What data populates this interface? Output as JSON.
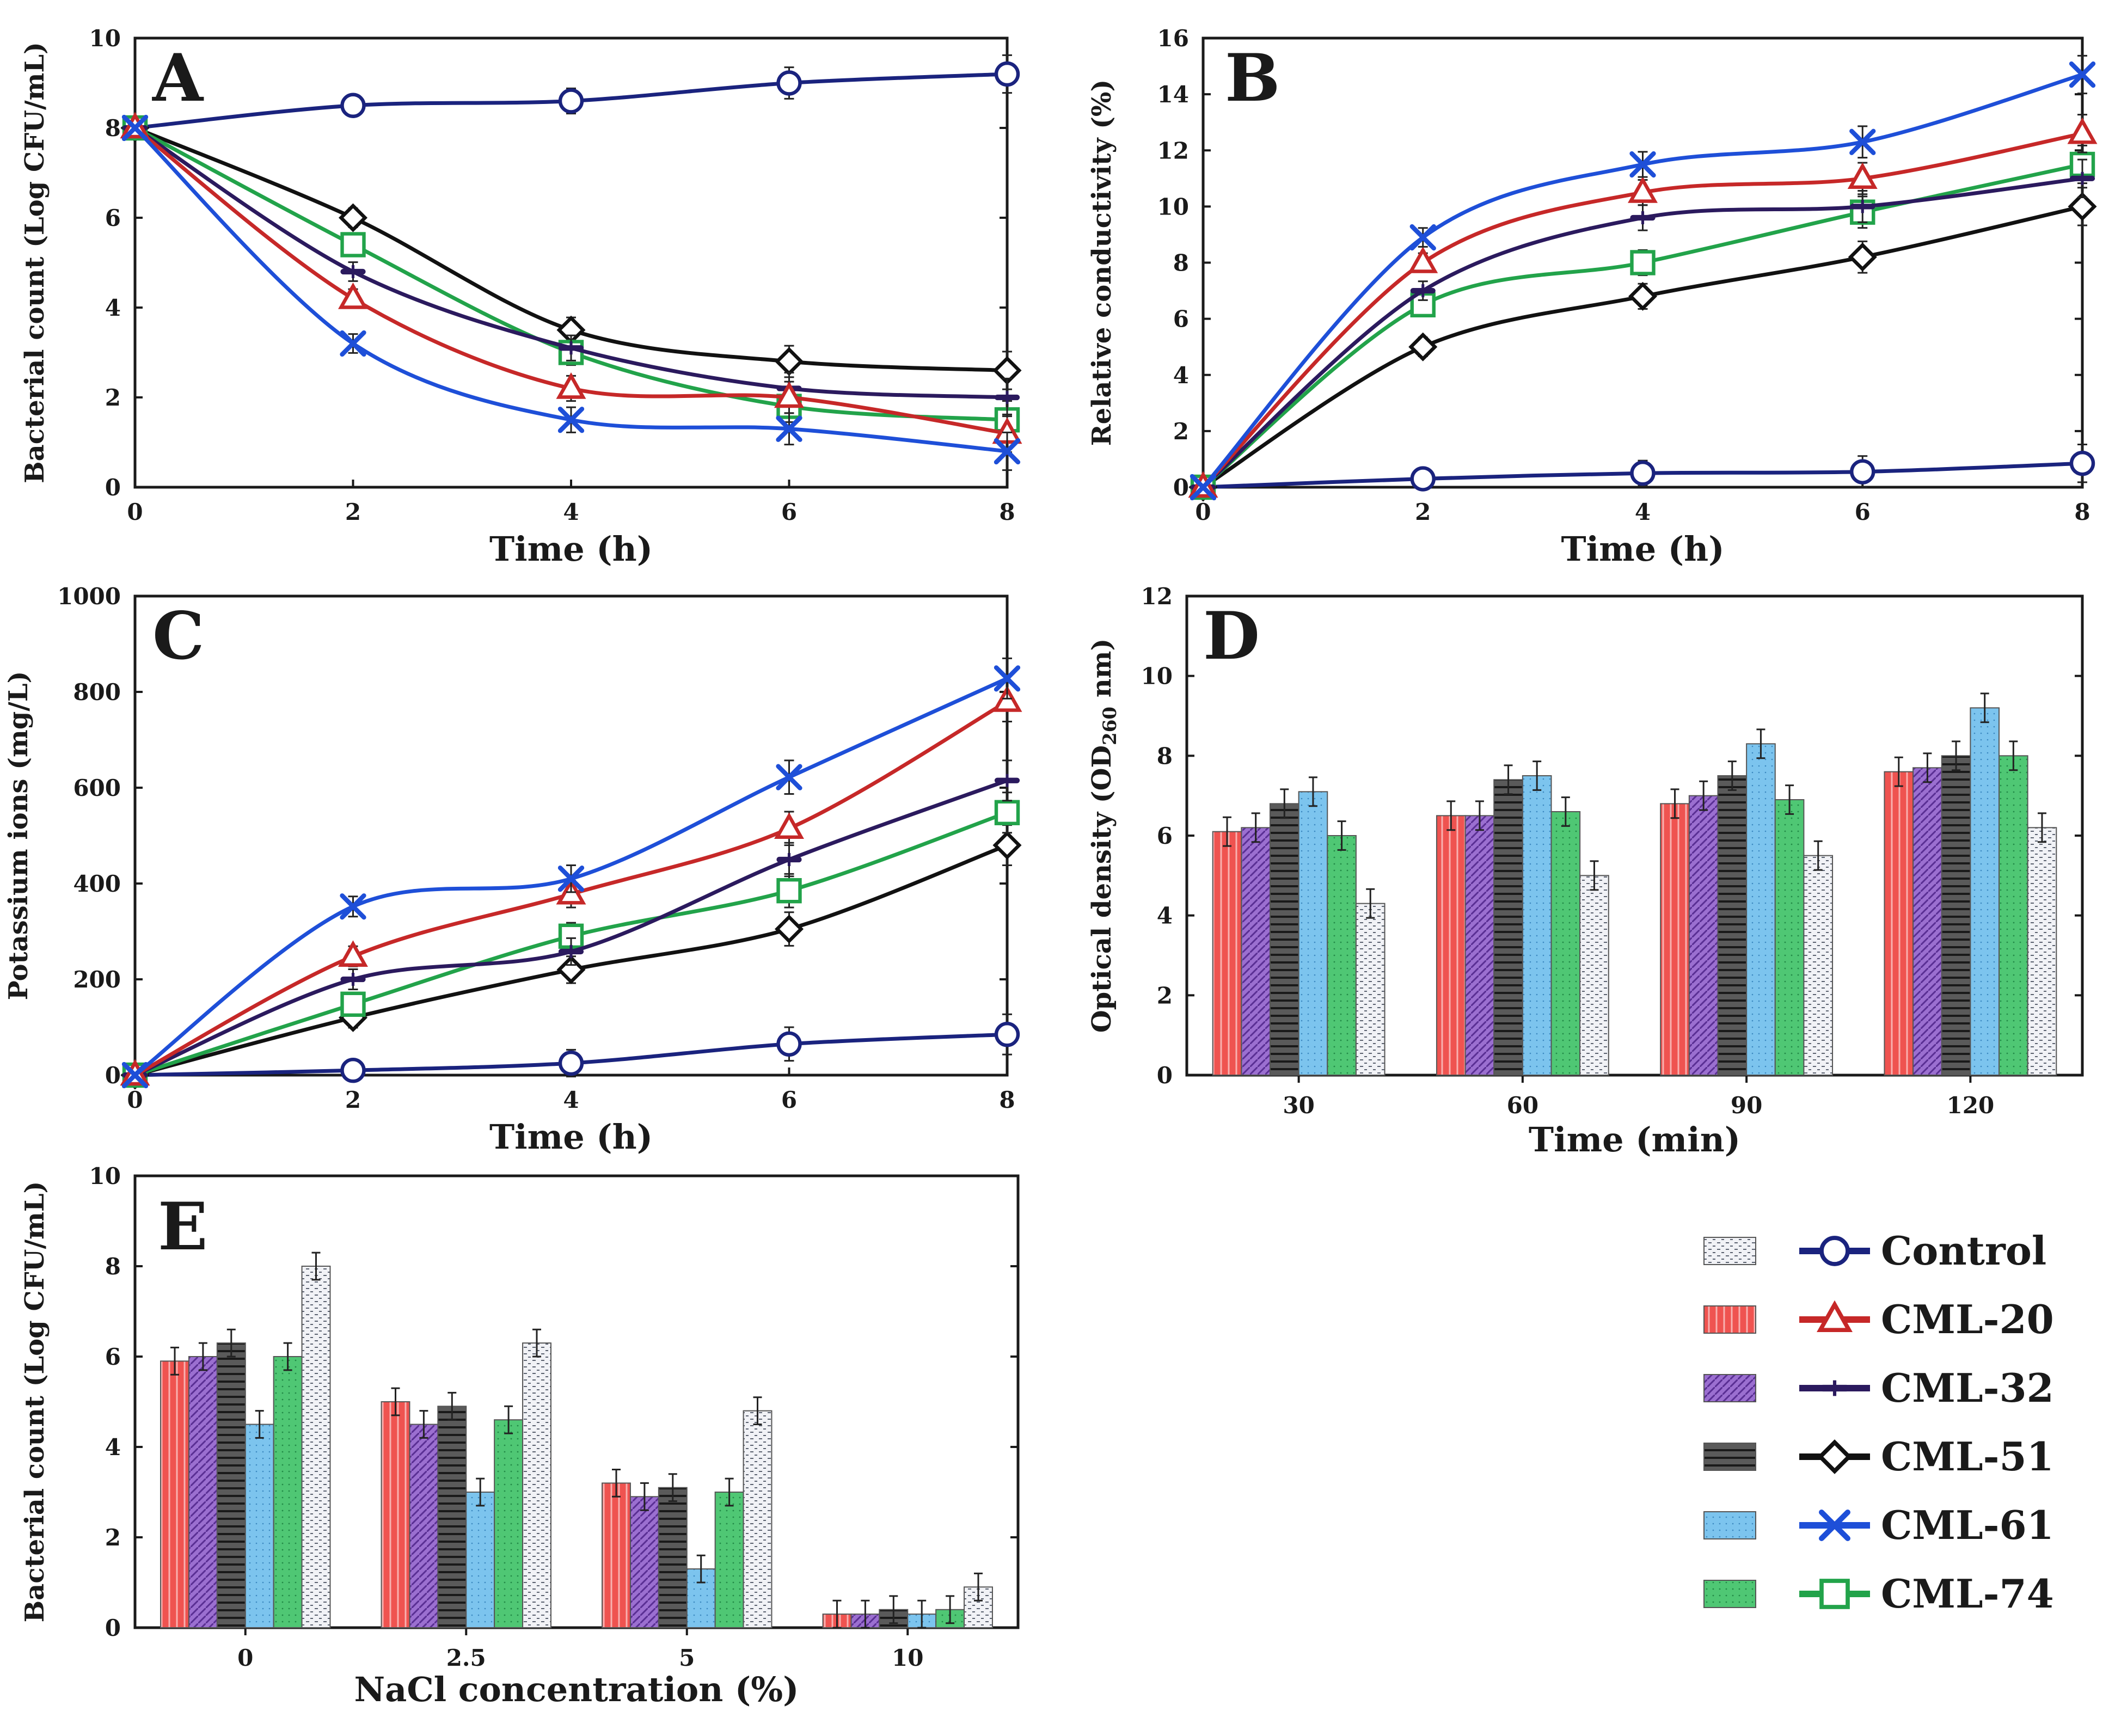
{
  "colors": {
    "Control": "#1a237e",
    "CML-20": "#c62828",
    "CML-32": "#2b1a5e",
    "CML-51": "#111111",
    "CML-61": "#1e4fd8",
    "CML-74": "#22a34a"
  },
  "bar_colors": {
    "Control": "#e8eaf0",
    "CML-20": "#ef5350",
    "CML-32": "#9b6fd0",
    "CML-51": "#555555",
    "CML-61": "#7cc4ee",
    "CML-74": "#4fc774"
  },
  "legend": {
    "entries": [
      "Control",
      "CML-20",
      "CML-32",
      "CML-51",
      "CML-61",
      "CML-74"
    ],
    "markers": [
      "circle",
      "triangle",
      "dash",
      "diamond",
      "x",
      "square"
    ]
  },
  "chart_data": [
    {
      "panel": "A",
      "type": "line",
      "xlabel": "Time (h)",
      "ylabel": "Bacterial count (Log CFU/mL)",
      "xlim": [
        0,
        8
      ],
      "ylim": [
        0,
        10
      ],
      "xticks": [
        0,
        2,
        4,
        6,
        8
      ],
      "yticks": [
        0,
        2,
        4,
        6,
        8,
        10
      ],
      "x": [
        0,
        2,
        4,
        6,
        8
      ],
      "series": [
        {
          "name": "Control",
          "values": [
            8.0,
            8.5,
            8.6,
            9.0,
            9.2
          ]
        },
        {
          "name": "CML-51",
          "values": [
            8.0,
            6.0,
            3.5,
            2.8,
            2.6
          ]
        },
        {
          "name": "CML-74",
          "values": [
            8.0,
            5.4,
            3.0,
            1.8,
            1.5
          ]
        },
        {
          "name": "CML-32",
          "values": [
            8.0,
            4.8,
            3.1,
            2.2,
            2.0
          ]
        },
        {
          "name": "CML-20",
          "values": [
            8.0,
            4.2,
            2.2,
            2.0,
            1.2
          ]
        },
        {
          "name": "CML-61",
          "values": [
            8.0,
            3.2,
            1.5,
            1.3,
            0.8
          ]
        }
      ]
    },
    {
      "panel": "B",
      "type": "line",
      "xlabel": "Time (h)",
      "ylabel": "Relative conductivity (%)",
      "xlim": [
        0,
        8
      ],
      "ylim": [
        0,
        16
      ],
      "xticks": [
        0,
        2,
        4,
        6,
        8
      ],
      "yticks": [
        0,
        2,
        4,
        6,
        8,
        10,
        12,
        14,
        16
      ],
      "x": [
        0,
        2,
        4,
        6,
        8
      ],
      "series": [
        {
          "name": "Control",
          "values": [
            0.0,
            0.3,
            0.5,
            0.55,
            0.85
          ]
        },
        {
          "name": "CML-51",
          "values": [
            0.0,
            5.0,
            6.8,
            8.2,
            10.0
          ]
        },
        {
          "name": "CML-74",
          "values": [
            0.0,
            6.5,
            8.0,
            9.8,
            11.5
          ]
        },
        {
          "name": "CML-32",
          "values": [
            0.0,
            7.0,
            9.6,
            10.0,
            11.0
          ]
        },
        {
          "name": "CML-20",
          "values": [
            0.0,
            8.0,
            10.5,
            11.0,
            12.6
          ]
        },
        {
          "name": "CML-61",
          "values": [
            0.0,
            8.9,
            11.5,
            12.3,
            14.7
          ]
        }
      ]
    },
    {
      "panel": "C",
      "type": "line",
      "xlabel": "Time (h)",
      "ylabel": "Potassium ions (mg/L)",
      "xlim": [
        0,
        8
      ],
      "ylim": [
        0,
        1000
      ],
      "xticks": [
        0,
        2,
        4,
        6,
        8
      ],
      "yticks": [
        0,
        200,
        400,
        600,
        800,
        1000
      ],
      "x": [
        0,
        2,
        4,
        6,
        8
      ],
      "series": [
        {
          "name": "Control",
          "values": [
            0,
            10,
            25,
            65,
            85
          ]
        },
        {
          "name": "CML-51",
          "values": [
            0,
            120,
            220,
            305,
            480
          ]
        },
        {
          "name": "CML-74",
          "values": [
            0,
            148,
            290,
            385,
            548
          ]
        },
        {
          "name": "CML-32",
          "values": [
            0,
            200,
            258,
            450,
            615
          ]
        },
        {
          "name": "CML-20",
          "values": [
            0,
            248,
            378,
            515,
            780
          ]
        },
        {
          "name": "CML-61",
          "values": [
            0,
            352,
            410,
            622,
            828
          ]
        }
      ]
    },
    {
      "panel": "D",
      "type": "bar",
      "xlabel": "Time (min)",
      "ylabel": "Optical density (OD",
      "ylabel_sub": "260",
      "ylabel_tail": " nm)",
      "ylim": [
        0,
        12
      ],
      "yticks": [
        0,
        2,
        4,
        6,
        8,
        10,
        12
      ],
      "categories": [
        "30",
        "60",
        "90",
        "120"
      ],
      "series": [
        {
          "name": "CML-20",
          "values": [
            6.1,
            6.5,
            6.8,
            7.6
          ]
        },
        {
          "name": "CML-32",
          "values": [
            6.2,
            6.5,
            7.0,
            7.7
          ]
        },
        {
          "name": "CML-51",
          "values": [
            6.8,
            7.4,
            7.5,
            8.0
          ]
        },
        {
          "name": "CML-61",
          "values": [
            7.1,
            7.5,
            8.3,
            9.2
          ]
        },
        {
          "name": "CML-74",
          "values": [
            6.0,
            6.6,
            6.9,
            8.0
          ]
        },
        {
          "name": "Control",
          "values": [
            4.3,
            5.0,
            5.5,
            6.2
          ]
        }
      ]
    },
    {
      "panel": "E",
      "type": "bar",
      "xlabel": "NaCl concentration (%)",
      "ylabel": "Bacterial count (Log CFU/mL)",
      "ylim": [
        0,
        10
      ],
      "yticks": [
        0,
        2,
        4,
        6,
        8,
        10
      ],
      "categories": [
        "0",
        "2.5",
        "5",
        "10"
      ],
      "series": [
        {
          "name": "CML-20",
          "values": [
            5.9,
            5.0,
            3.2,
            0.3
          ]
        },
        {
          "name": "CML-32",
          "values": [
            6.0,
            4.5,
            2.9,
            0.3
          ]
        },
        {
          "name": "CML-51",
          "values": [
            6.3,
            4.9,
            3.1,
            0.4
          ]
        },
        {
          "name": "CML-61",
          "values": [
            4.5,
            3.0,
            1.3,
            0.3
          ]
        },
        {
          "name": "CML-74",
          "values": [
            6.0,
            4.6,
            3.0,
            0.4
          ]
        },
        {
          "name": "Control",
          "values": [
            8.0,
            6.3,
            4.8,
            0.9
          ]
        }
      ]
    }
  ]
}
